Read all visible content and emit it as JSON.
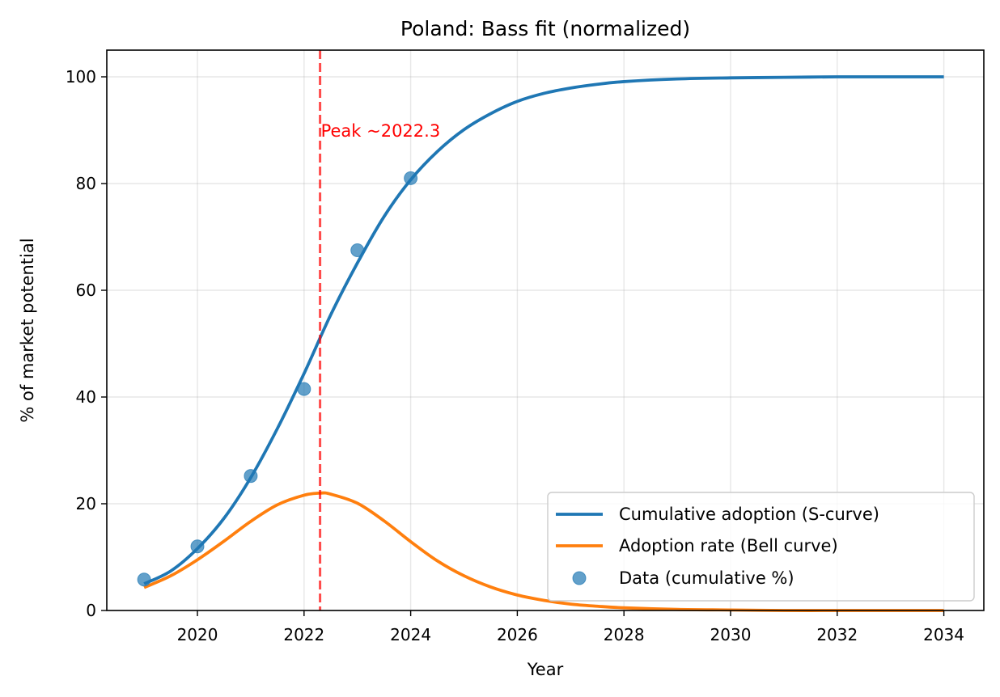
{
  "chart_data": {
    "type": "line",
    "title": "Poland: Bass fit (normalized)",
    "xlabel": "Year",
    "ylabel": "% of market potential",
    "xlim": [
      2018.3,
      2034.75
    ],
    "ylim": [
      0,
      105
    ],
    "xticks": [
      2020,
      2022,
      2024,
      2026,
      2028,
      2030,
      2032,
      2034
    ],
    "yticks": [
      0,
      20,
      40,
      60,
      80,
      100
    ],
    "grid": true,
    "legend_position": "lower-right",
    "colors": {
      "cumulative": "#1f77b4",
      "rate": "#ff7f0e",
      "peak_line": "#ff0000",
      "data_points": "#1f77b4"
    },
    "series": [
      {
        "name": "Cumulative adoption (S-curve)",
        "kind": "line",
        "x": [
          2019.0,
          2019.5,
          2020.0,
          2020.5,
          2021.0,
          2021.5,
          2022.0,
          2022.5,
          2023.0,
          2023.5,
          2024.0,
          2024.5,
          2025.0,
          2025.5,
          2026.0,
          2026.5,
          2027.0,
          2027.5,
          2028.0,
          2029.0,
          2030.0,
          2031.0,
          2032.0,
          2033.0,
          2034.0
        ],
        "y": [
          5.0,
          7.4,
          11.6,
          17.3,
          24.9,
          34.1,
          44.4,
          55.4,
          65.1,
          73.8,
          80.7,
          86.0,
          90.1,
          93.1,
          95.4,
          96.9,
          97.9,
          98.6,
          99.1,
          99.6,
          99.8,
          99.9,
          100.0,
          100.0,
          100.0
        ]
      },
      {
        "name": "Adoption rate (Bell curve)",
        "kind": "line",
        "x": [
          2019.0,
          2019.5,
          2020.0,
          2020.5,
          2021.0,
          2021.5,
          2022.0,
          2022.3,
          2022.5,
          2023.0,
          2023.5,
          2024.0,
          2024.5,
          2025.0,
          2025.5,
          2026.0,
          2026.5,
          2027.0,
          2027.5,
          2028.0,
          2029.0,
          2030.0,
          2031.0,
          2032.0,
          2033.0,
          2034.0
        ],
        "y": [
          4.3,
          6.5,
          9.5,
          13.0,
          16.7,
          19.8,
          21.6,
          22.0,
          21.8,
          20.1,
          16.8,
          12.9,
          9.3,
          6.5,
          4.4,
          2.9,
          1.9,
          1.2,
          0.8,
          0.5,
          0.2,
          0.1,
          0.0,
          0.0,
          0.0,
          0.0
        ]
      },
      {
        "name": "Data (cumulative %)",
        "kind": "scatter",
        "x": [
          2019,
          2020,
          2021,
          2022,
          2023,
          2024
        ],
        "y": [
          5.8,
          12.0,
          25.2,
          41.5,
          67.5,
          81.0
        ]
      }
    ],
    "annotations": [
      {
        "type": "vline",
        "x": 2022.3,
        "style": "dashed",
        "color": "#ff0000"
      },
      {
        "type": "text",
        "x": 2022.3,
        "y": 90,
        "text": "Peak ~2022.3",
        "color": "#ff0000"
      }
    ]
  }
}
